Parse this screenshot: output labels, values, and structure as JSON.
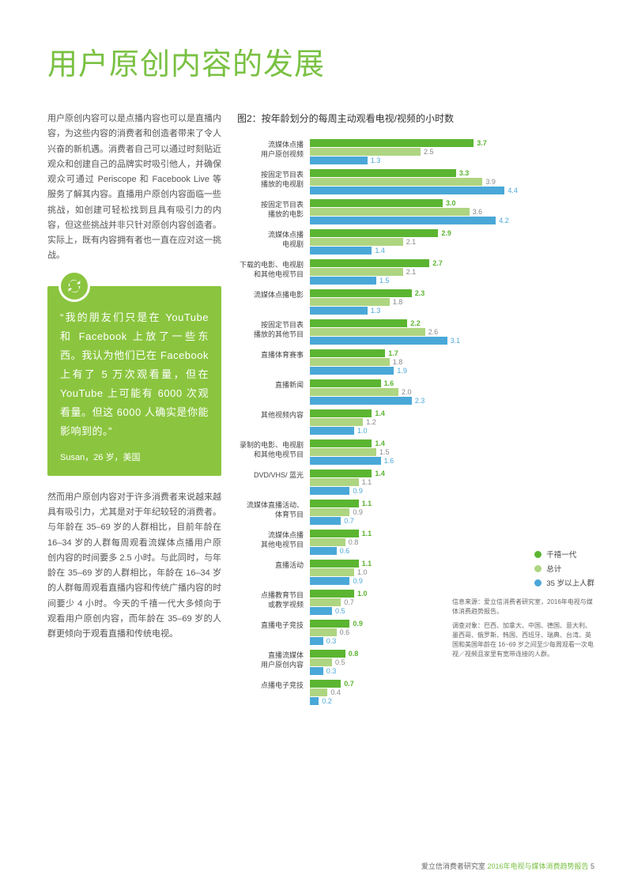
{
  "colors": {
    "accent": "#7ac143",
    "millennial": "#5bb531",
    "total": "#aed581",
    "older": "#4aa8d8",
    "text": "#555555",
    "title": "#7ac143"
  },
  "title": "用户原创内容的发展",
  "para1": "用户原创内容可以是点播内容也可以是直播内容，为这些内容的消费者和创造者带来了令人兴奋的新机遇。消费者自己可以通过时刻贴近观众和创建自己的品牌实时吸引他人，并确保观众可通过 Periscope 和 Facebook Live 等服务了解其内容。直播用户原创内容面临一些挑战，如创建可轻松找到且具有吸引力的内容，但这些挑战并非只针对原创内容创造者。实际上，既有内容拥有者也一直在应对这一挑战。",
  "quote": {
    "text": "“我的朋友们只是在 YouTube 和 Facebook 上放了一些东西。我认为他们已在 Facebook 上有了 5 万次观看量，但在 YouTube 上可能有 6000 次观看量。但这 6000 人确实是你能影响到的。”",
    "attribution": "Susan，26 岁，美国"
  },
  "para2": "然而用户原创内容对于许多消费者来说越来越具有吸引力，尤其是对于年纪较轻的消费者。与年龄在 35–69 岁的人群相比，目前年龄在 16–34 岁的人群每周观看流媒体点播用户原创内容的时间要多 2.5 小时。与此同时，与年龄在 35–69 岁的人群相比，年龄在 16–34 岁的人群每周观看直播内容和传统广播内容的时间要少 4 小时。今天的千禧一代大多倾向于观看用户原创内容，而年龄在 35–69 岁的人群更倾向于观看直播和传统电视。",
  "chart": {
    "title": "图2：按年龄划分的每周主动观看电视/视频的小时数",
    "max": 5.0,
    "categories": [
      {
        "label": [
          "流媒体点播",
          "用户原创视频"
        ],
        "v": [
          3.7,
          2.5,
          1.3
        ]
      },
      {
        "label": [
          "按固定节目表",
          "播放的电视剧"
        ],
        "v": [
          3.3,
          3.9,
          4.4
        ]
      },
      {
        "label": [
          "按固定节目表",
          "播放的电影"
        ],
        "v": [
          3.0,
          3.6,
          4.2
        ]
      },
      {
        "label": [
          "流媒体点播",
          "电视剧"
        ],
        "v": [
          2.9,
          2.1,
          1.4
        ]
      },
      {
        "label": [
          "下载的电影、电视剧",
          "和其他电视节目"
        ],
        "v": [
          2.7,
          2.1,
          1.5
        ]
      },
      {
        "label": [
          "流媒体点播电影"
        ],
        "v": [
          2.3,
          1.8,
          1.3
        ]
      },
      {
        "label": [
          "按固定节目表",
          "播放的其他节目"
        ],
        "v": [
          2.2,
          2.6,
          3.1
        ]
      },
      {
        "label": [
          "直播体育赛事"
        ],
        "v": [
          1.7,
          1.8,
          1.9
        ]
      },
      {
        "label": [
          "直播新闻"
        ],
        "v": [
          1.6,
          2.0,
          2.3
        ]
      },
      {
        "label": [
          "其他视频内容"
        ],
        "v": [
          1.4,
          1.2,
          1.0
        ]
      },
      {
        "label": [
          "录制的电影、电视剧",
          "和其他电视节目"
        ],
        "v": [
          1.4,
          1.5,
          1.6
        ]
      },
      {
        "label": [
          "DVD/VHS/ 蓝光"
        ],
        "v": [
          1.4,
          1.1,
          0.9
        ]
      },
      {
        "label": [
          "流媒体直播活动、",
          "体育节目"
        ],
        "v": [
          1.1,
          0.9,
          0.7
        ]
      },
      {
        "label": [
          "流媒体点播",
          "其他电视节目"
        ],
        "v": [
          1.1,
          0.8,
          0.6
        ]
      },
      {
        "label": [
          "直播活动"
        ],
        "v": [
          1.1,
          1.0,
          0.9
        ]
      },
      {
        "label": [
          "点播教育节目",
          "或教学视频"
        ],
        "v": [
          1.0,
          0.7,
          0.5
        ]
      },
      {
        "label": [
          "直播电子竞技"
        ],
        "v": [
          0.9,
          0.6,
          0.3
        ]
      },
      {
        "label": [
          "直播流媒体",
          "用户原创内容"
        ],
        "v": [
          0.8,
          0.5,
          0.3
        ]
      },
      {
        "label": [
          "点播电子竞技"
        ],
        "v": [
          0.7,
          0.4,
          0.2
        ]
      }
    ],
    "legend": [
      "千禧一代",
      "总计",
      "35 岁以上人群"
    ]
  },
  "source": {
    "line1": "信息来源：爱立信消费者研究室，2016年电视与媒体消费趋势报告。",
    "line2": "调查对象：巴西、加拿大、中国、德国、意大利、墨西哥、俄罗斯、韩国、西班牙、瑞典、台湾、英国和美国年龄在 16~69 岁之间至少每周观看一次电视／视频且家里有宽带连接的人群。"
  },
  "footer": {
    "org": "爱立信消费者研究室",
    "report": "2016年电视与媒体消费趋势报告",
    "page": "5"
  }
}
